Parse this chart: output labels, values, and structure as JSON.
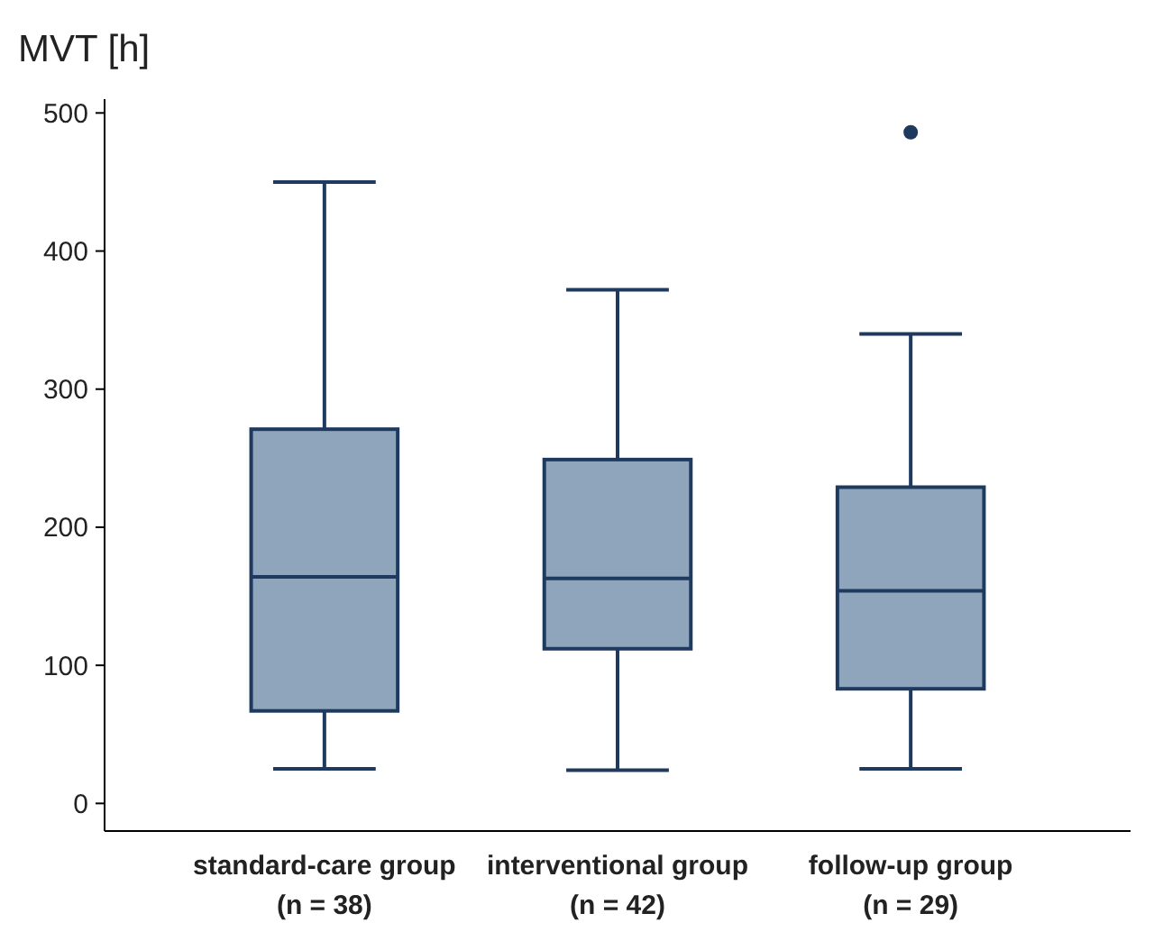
{
  "chart_data": {
    "type": "box",
    "ylabel": "MVT [h]",
    "categories": [
      "standard-care group\n(n = 38)",
      "interventional group\n(n = 42)",
      "follow-up group\n(n = 29)"
    ],
    "color": "#8fa5bc",
    "boxes": [
      {
        "low": 25,
        "q1": 67,
        "median": 164,
        "q3": 271,
        "high": 450
      },
      {
        "low": 24,
        "q1": 112,
        "median": 163,
        "q3": 249,
        "high": 372
      },
      {
        "low": 25,
        "q1": 83,
        "median": 154,
        "q3": 229,
        "high": 340,
        "outliers": [
          486
        ]
      }
    ],
    "ylim": [
      -20,
      510
    ],
    "yticks": [
      0,
      100,
      200,
      300,
      400,
      500
    ],
    "grid": false
  }
}
